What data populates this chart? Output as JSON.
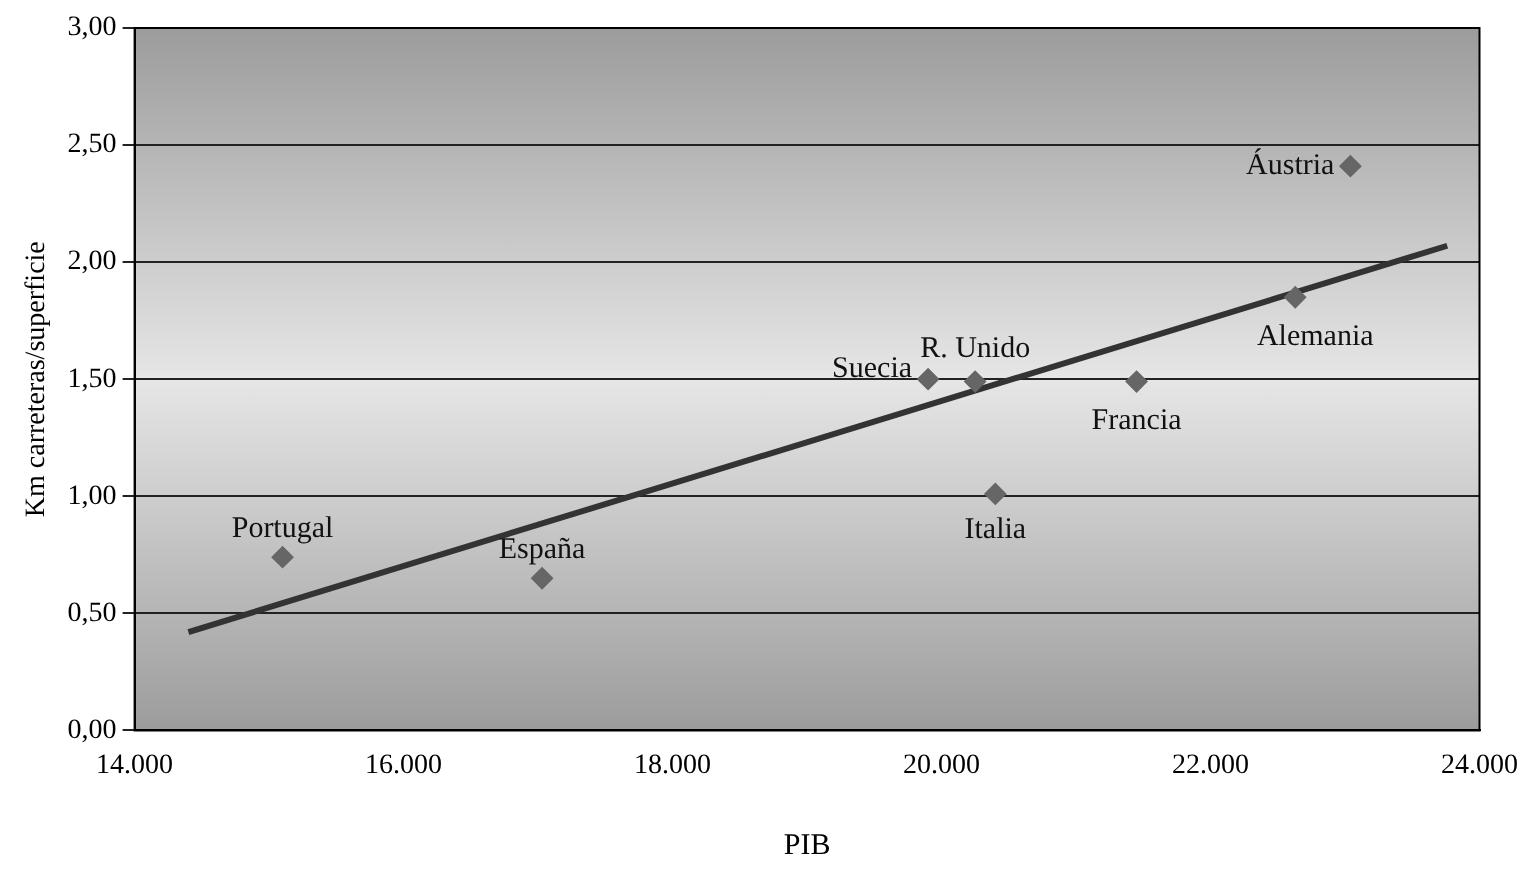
{
  "chart_data": {
    "type": "scatter",
    "xlabel": "PIB",
    "ylabel": "Km carreteras/superficie",
    "series": [
      {
        "marker": "diamond",
        "color": "#666666",
        "x": [
          15100,
          17030,
          19900,
          20250,
          20400,
          21450,
          22630,
          23040
        ],
        "values": [
          0.74,
          0.65,
          1.5,
          1.49,
          1.01,
          1.49,
          1.85,
          2.41
        ]
      },
      {
        "type": "line",
        "marker": "none",
        "color": "#333333",
        "x": [
          14400,
          23760
        ],
        "values": [
          0.42,
          2.07
        ]
      }
    ],
    "xlim": [
      14000,
      24000
    ],
    "xticks": [
      {
        "value": 14000,
        "label": "14.000"
      },
      {
        "value": 16000,
        "label": "16.000"
      },
      {
        "value": 18000,
        "label": "18.000"
      },
      {
        "value": 20000,
        "label": "20.000"
      },
      {
        "value": 22000,
        "label": "22.000"
      },
      {
        "value": 24000,
        "label": "24.000"
      }
    ],
    "ylim": [
      0,
      3
    ],
    "yticks": [
      {
        "value": 0,
        "label": "0,00"
      },
      {
        "value": 0.5,
        "label": "0,50"
      },
      {
        "value": 1,
        "label": "1,00"
      },
      {
        "value": 1.5,
        "label": "1,50"
      },
      {
        "value": 2,
        "label": "2,00"
      },
      {
        "value": 2.5,
        "label": "2,50"
      },
      {
        "value": 3,
        "label": "3,00"
      }
    ],
    "grid": "y",
    "legend": false,
    "annotations": [
      {
        "text": "Portugal",
        "x": 15100,
        "y": 0.74
      },
      {
        "text": "España",
        "x": 17030,
        "y": 0.65
      },
      {
        "text": "Suecia",
        "x": 19900,
        "y": 1.5
      },
      {
        "text": "R. Unido",
        "x": 20250,
        "y": 1.49
      },
      {
        "text": "Italia",
        "x": 20400,
        "y": 1.01
      },
      {
        "text": "Francia",
        "x": 21450,
        "y": 1.49
      },
      {
        "text": "Alemania",
        "x": 22630,
        "y": 1.85
      },
      {
        "text": "Áustria",
        "x": 23040,
        "y": 2.41
      }
    ]
  }
}
